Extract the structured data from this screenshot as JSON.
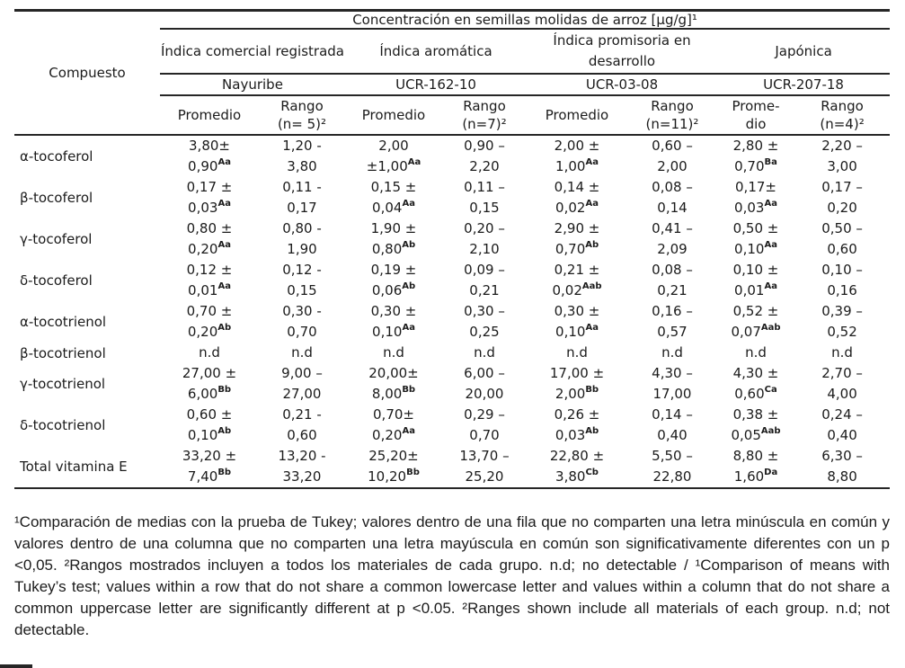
{
  "colors": {
    "background": "#ffffff",
    "text": "#1b1b1b",
    "rule": "#262626"
  },
  "table": {
    "corner_label": "Compuesto",
    "title": "Concentración en semillas molidas de arroz [µg/g]¹",
    "groups": [
      {
        "name": "Índica comercial registrada",
        "variety": "Nayuribe",
        "sub": [
          [
            "Promedio"
          ],
          [
            "Rango",
            "(n= 5)²"
          ]
        ]
      },
      {
        "name": "Índica aromática",
        "variety": "UCR-162-10",
        "sub": [
          [
            "Promedio"
          ],
          [
            "Rango",
            "(n=7)²"
          ]
        ]
      },
      {
        "name": "Índica promisoria en desarrollo",
        "variety": "UCR-03-08",
        "sub": [
          [
            "Promedio"
          ],
          [
            "Rango",
            "(n=11)²"
          ]
        ]
      },
      {
        "name": "Japónica",
        "variety": "UCR-207-18",
        "sub": [
          [
            "Prome-",
            "dio"
          ],
          [
            "Rango",
            "(n=4)²"
          ]
        ]
      }
    ],
    "rows": [
      {
        "compound": "α-tocoferol",
        "cells": [
          [
            "3,80±",
            "0,90",
            "Aa"
          ],
          [
            "1,20 -",
            "3,80"
          ],
          [
            "2,00",
            "±1,00",
            "Aa"
          ],
          [
            "0,90 –",
            "2,20"
          ],
          [
            "2,00 ±",
            "1,00",
            "Aa"
          ],
          [
            "0,60 –",
            "2,00"
          ],
          [
            "2,80 ±",
            "0,70",
            "Ba"
          ],
          [
            "2,20 –",
            "3,00"
          ]
        ]
      },
      {
        "compound": "β-tocoferol",
        "cells": [
          [
            "0,17 ±",
            "0,03",
            "Aa"
          ],
          [
            "0,11 -",
            "0,17"
          ],
          [
            "0,15 ±",
            "0,04",
            "Aa"
          ],
          [
            "0,11 –",
            "0,15"
          ],
          [
            "0,14 ±",
            "0,02",
            "Aa"
          ],
          [
            "0,08 –",
            "0,14"
          ],
          [
            "0,17±",
            "0,03",
            "Aa"
          ],
          [
            "0,17 –",
            "0,20"
          ]
        ]
      },
      {
        "compound": "γ-tocoferol",
        "cells": [
          [
            "0,80 ±",
            "0,20",
            "Aa"
          ],
          [
            "0,80 -",
            "1,90"
          ],
          [
            "1,90 ±",
            "0,80",
            "Ab"
          ],
          [
            "0,20 –",
            "2,10"
          ],
          [
            "2,90 ±",
            "0,70",
            "Ab"
          ],
          [
            "0,41 –",
            "2,09"
          ],
          [
            "0,50 ±",
            "0,10",
            "Aa"
          ],
          [
            "0,50 –",
            "0,60"
          ]
        ]
      },
      {
        "compound": "δ-tocoferol",
        "cells": [
          [
            "0,12 ±",
            "0,01",
            "Aa"
          ],
          [
            "0,12 -",
            "0,15"
          ],
          [
            "0,19 ±",
            "0,06",
            "Ab"
          ],
          [
            "0,09 –",
            "0,21"
          ],
          [
            "0,21 ±",
            "0,02",
            "Aab"
          ],
          [
            "0,08 –",
            "0,21"
          ],
          [
            "0,10 ±",
            "0,01",
            "Aa"
          ],
          [
            "0,10 –",
            "0,16"
          ]
        ]
      },
      {
        "compound": "α-tocotrienol",
        "cells": [
          [
            "0,70 ±",
            "0,20",
            "Ab"
          ],
          [
            "0,30 -",
            "0,70"
          ],
          [
            "0,30 ±",
            "0,10",
            "Aa"
          ],
          [
            "0,30 –",
            "0,25"
          ],
          [
            "0,30 ±",
            "0,10",
            "Aa"
          ],
          [
            "0,16 –",
            "0,57"
          ],
          [
            "0,52 ±",
            "0,07",
            "Aab"
          ],
          [
            "0,39 –",
            "0,52"
          ]
        ]
      },
      {
        "compound": "β-tocotrienol",
        "cells": [
          [
            "n.d"
          ],
          [
            "n.d"
          ],
          [
            "n.d"
          ],
          [
            "n.d"
          ],
          [
            "n.d"
          ],
          [
            "n.d"
          ],
          [
            "n.d"
          ],
          [
            "n.d"
          ]
        ]
      },
      {
        "compound": "γ-tocotrienol",
        "cells": [
          [
            "27,00 ±",
            "6,00",
            "Bb"
          ],
          [
            "9,00 –",
            "27,00"
          ],
          [
            "20,00±",
            "8,00",
            "Bb"
          ],
          [
            "6,00 –",
            "20,00"
          ],
          [
            "17,00 ±",
            "2,00",
            "Bb"
          ],
          [
            "4,30 –",
            "17,00"
          ],
          [
            "4,30 ±",
            "0,60",
            "Ca"
          ],
          [
            "2,70 –",
            "4,00"
          ]
        ]
      },
      {
        "compound": "δ-tocotrienol",
        "cells": [
          [
            "0,60 ±",
            "0,10",
            "Ab"
          ],
          [
            "0,21 -",
            "0,60"
          ],
          [
            "0,70±",
            "0,20",
            "Aa"
          ],
          [
            "0,29 –",
            "0,70"
          ],
          [
            "0,26 ±",
            "0,03",
            "Ab"
          ],
          [
            "0,14 –",
            "0,40"
          ],
          [
            "0,38 ±",
            "0,05",
            "Aab"
          ],
          [
            "0,24 –",
            "0,40"
          ]
        ]
      },
      {
        "compound": "Total vitamina E",
        "cells": [
          [
            "33,20 ±",
            "7,40",
            "Bb"
          ],
          [
            "13,20 -",
            "33,20"
          ],
          [
            "25,20±",
            "10,20",
            "Bb"
          ],
          [
            "13,70 –",
            "25,20"
          ],
          [
            "22,80 ±",
            "3,80",
            "Cb"
          ],
          [
            "5,50 –",
            "22,80"
          ],
          [
            "8,80 ±",
            "1,60",
            "Da"
          ],
          [
            "6,30 –",
            "8,80"
          ]
        ]
      }
    ]
  },
  "footnote": {
    "text": "¹Comparación de medias con la prueba de Tukey; valores dentro de una fila que no comparten una letra minúscula en común y valores dentro de una columna que no comparten una letra mayúscula en común son significativamente diferentes con un p <0,05. ²Rangos mostrados incluyen a todos los materiales de cada grupo. n.d; no detectable / ¹Comparison of means with Tukey’s test; values within a row that do not share a common lowercase letter and values within a column that do not share a common uppercase letter are significantly different at p <0.05. ²Ranges shown include all materials of each group. n.d; not detectable."
  }
}
